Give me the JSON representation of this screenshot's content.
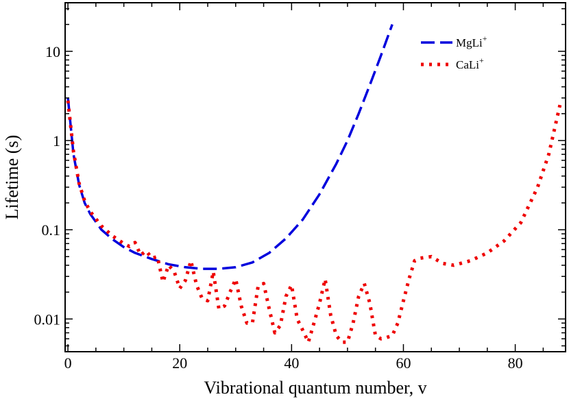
{
  "chart_data": {
    "type": "line",
    "title": "",
    "xlabel": "Vibrational quantum number, v",
    "ylabel": "Lifetime (s)",
    "xscale": "linear",
    "yscale": "log",
    "xlim": [
      -0.5,
      89
    ],
    "ylim": [
      0.0043,
      35
    ],
    "xticks": [
      0,
      20,
      40,
      60,
      80
    ],
    "xtick_labels": [
      "0",
      "20",
      "40",
      "60",
      "80"
    ],
    "yticks": [
      0.01,
      0.1,
      1,
      10
    ],
    "ytick_labels": [
      "0.01",
      "0.1",
      "1",
      "10"
    ],
    "grid": false,
    "legend_position": "top-right",
    "series": [
      {
        "name": "MgLi",
        "name_sup": "+",
        "color": "#0000dd",
        "style": "dashed",
        "x": [
          0,
          1,
          2,
          3,
          4,
          6,
          8,
          10,
          12,
          15,
          18,
          21,
          24,
          27,
          30,
          33,
          36,
          39,
          42,
          45,
          48,
          50,
          52,
          54,
          56,
          58
        ],
        "y": [
          3.0,
          0.7,
          0.32,
          0.2,
          0.15,
          0.1,
          0.078,
          0.064,
          0.055,
          0.047,
          0.041,
          0.038,
          0.0365,
          0.0365,
          0.038,
          0.043,
          0.055,
          0.08,
          0.13,
          0.25,
          0.55,
          1.0,
          2.0,
          4.2,
          9.0,
          20.0
        ]
      },
      {
        "name": "CaLi",
        "name_sup": "+",
        "color": "#ee0000",
        "style": "dotted",
        "x": [
          0,
          1,
          2,
          3,
          4,
          6,
          8,
          10,
          11,
          12,
          13,
          14,
          15,
          16,
          17,
          18,
          19,
          20,
          21,
          22,
          23,
          24,
          25,
          26,
          27,
          28,
          29,
          30,
          31,
          32,
          33,
          34,
          35,
          36,
          37,
          38,
          39,
          40,
          41,
          42,
          43,
          44,
          45,
          46,
          47,
          48,
          49,
          50,
          51,
          52,
          53,
          54,
          55,
          56,
          57,
          58,
          59,
          60,
          61,
          62,
          63,
          65,
          67,
          69,
          72,
          75,
          78,
          81,
          84,
          86,
          88
        ],
        "y": [
          2.8,
          0.75,
          0.33,
          0.21,
          0.16,
          0.11,
          0.085,
          0.07,
          0.065,
          0.072,
          0.052,
          0.058,
          0.048,
          0.05,
          0.026,
          0.04,
          0.034,
          0.022,
          0.027,
          0.045,
          0.024,
          0.017,
          0.016,
          0.034,
          0.013,
          0.014,
          0.02,
          0.028,
          0.014,
          0.009,
          0.009,
          0.023,
          0.025,
          0.013,
          0.007,
          0.0085,
          0.018,
          0.024,
          0.01,
          0.0075,
          0.0055,
          0.009,
          0.015,
          0.028,
          0.011,
          0.0065,
          0.0055,
          0.0055,
          0.009,
          0.018,
          0.025,
          0.015,
          0.0065,
          0.006,
          0.0062,
          0.0065,
          0.009,
          0.016,
          0.028,
          0.045,
          0.048,
          0.05,
          0.042,
          0.04,
          0.045,
          0.055,
          0.075,
          0.12,
          0.3,
          0.7,
          2.5
        ]
      }
    ]
  }
}
